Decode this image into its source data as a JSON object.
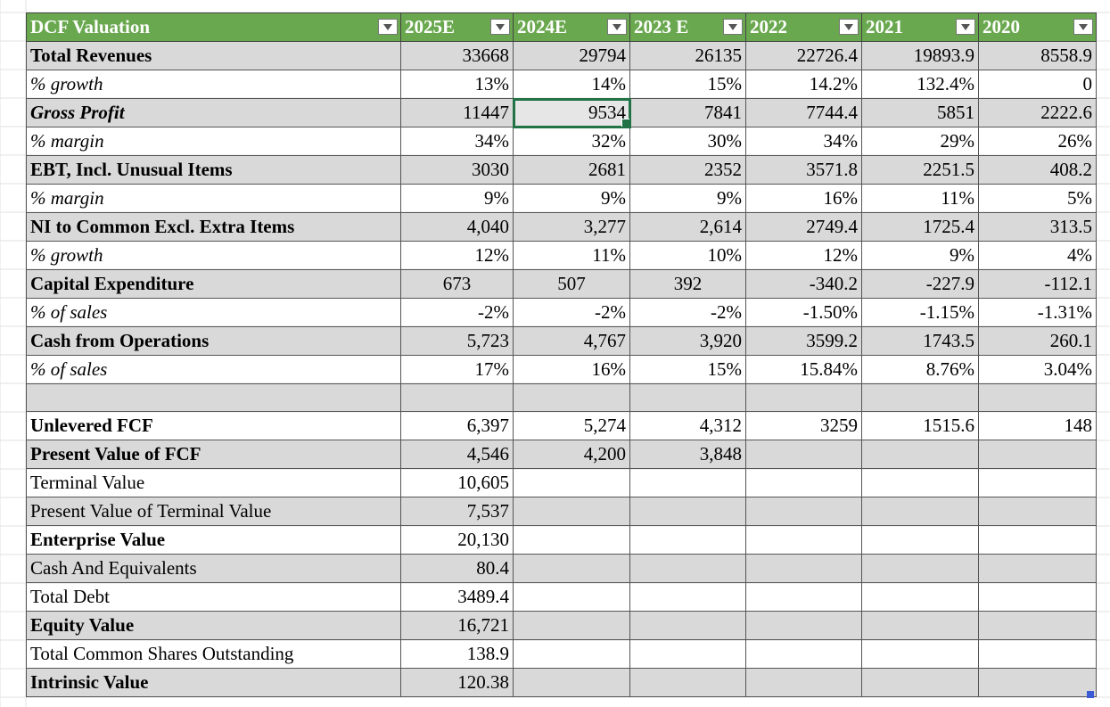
{
  "header": {
    "title": "DCF Valuation",
    "years": [
      "2025E",
      "2024E",
      "2023 E",
      "2022",
      "2021",
      "2020"
    ]
  },
  "rows": [
    {
      "label": "Total Revenues",
      "style": "bold",
      "gray": true,
      "values": [
        "33668",
        "29794",
        "26135",
        "22726.4",
        "19893.9",
        "8558.9"
      ]
    },
    {
      "label": "% growth",
      "style": "ital",
      "gray": false,
      "values": [
        "13%",
        "14%",
        "15%",
        "14.2%",
        "132.4%",
        "0"
      ],
      "red": [
        0,
        1,
        2
      ]
    },
    {
      "label": "Gross Profit",
      "style": "boldital",
      "gray": true,
      "values": [
        "11447",
        "9534",
        "7841",
        "7744.4",
        "5851",
        "2222.6"
      ],
      "selected": 1
    },
    {
      "label": "% margin",
      "style": "ital",
      "gray": false,
      "values": [
        "34%",
        "32%",
        "30%",
        "34%",
        "29%",
        "26%"
      ],
      "red": [
        0,
        1,
        2
      ]
    },
    {
      "label": "EBT, Incl. Unusual Items",
      "style": "bold",
      "gray": true,
      "values": [
        "3030",
        "2681",
        "2352",
        "3571.8",
        "2251.5",
        "408.2"
      ]
    },
    {
      "label": "% margin",
      "style": "ital",
      "gray": false,
      "values": [
        "9%",
        "9%",
        "9%",
        "16%",
        "11%",
        "5%"
      ],
      "red": [
        0,
        1,
        2
      ]
    },
    {
      "label": "NI to Common Excl. Extra Items",
      "style": "bold",
      "gray": true,
      "values": [
        "4,040",
        "3,277",
        "2,614",
        "2749.4",
        "1725.4",
        "313.5"
      ]
    },
    {
      "label": "% growth",
      "style": "ital",
      "gray": false,
      "values": [
        "12%",
        "11%",
        "10%",
        "12%",
        "9%",
        "4%"
      ],
      "red": [
        0,
        1,
        2
      ]
    },
    {
      "label": "Capital Expenditure",
      "style": "bold",
      "gray": true,
      "values": [
        "673",
        "507",
        "392",
        "-340.2",
        "-227.9",
        "-112.1"
      ],
      "center": [
        0,
        1,
        2
      ]
    },
    {
      "label": "% of sales",
      "style": "ital",
      "gray": false,
      "values": [
        "-2%",
        "-2%",
        "-2%",
        "-1.50%",
        "-1.15%",
        "-1.31%"
      ],
      "red": [
        0,
        1,
        2
      ]
    },
    {
      "label": "Cash from Operations",
      "style": "bold",
      "gray": true,
      "values": [
        "5,723",
        "4,767",
        "3,920",
        "3599.2",
        "1743.5",
        "260.1"
      ]
    },
    {
      "label": "% of sales",
      "style": "ital",
      "gray": false,
      "values": [
        "17%",
        "16%",
        "15%",
        "15.84%",
        "8.76%",
        "3.04%"
      ],
      "red": [
        0,
        1,
        2
      ]
    },
    {
      "label": "",
      "style": "",
      "gray": true,
      "values": [
        "",
        "",
        "",
        "",
        "",
        ""
      ]
    },
    {
      "label": "Unlevered FCF",
      "style": "bold",
      "gray": false,
      "values": [
        "6,397",
        "5,274",
        "4,312",
        "3259",
        "1515.6",
        "148"
      ]
    },
    {
      "label": "Present Value of FCF",
      "style": "bold",
      "gray": true,
      "values": [
        "4,546",
        "4,200",
        "3,848",
        "",
        "",
        ""
      ]
    },
    {
      "label": "Terminal Value",
      "style": "",
      "gray": false,
      "values": [
        "10,605",
        "",
        "",
        "",
        "",
        ""
      ]
    },
    {
      "label": "Present Value of Terminal Value",
      "style": "",
      "gray": true,
      "values": [
        "7,537",
        "",
        "",
        "",
        "",
        ""
      ]
    },
    {
      "label": "Enterprise Value",
      "style": "bold",
      "gray": false,
      "values": [
        "20,130",
        "",
        "",
        "",
        "",
        ""
      ]
    },
    {
      "label": "Cash And Equivalents",
      "style": "",
      "gray": true,
      "values": [
        "80.4",
        "",
        "",
        "",
        "",
        ""
      ]
    },
    {
      "label": "Total Debt",
      "style": "",
      "gray": false,
      "values": [
        "3489.4",
        "",
        "",
        "",
        "",
        ""
      ]
    },
    {
      "label": "Equity Value",
      "style": "bold",
      "gray": true,
      "values": [
        "16,721",
        "",
        "",
        "",
        "",
        ""
      ]
    },
    {
      "label": "Total Common Shares Outstanding",
      "style": "",
      "gray": false,
      "values": [
        "138.9",
        "",
        "",
        "",
        "",
        ""
      ]
    },
    {
      "label": "Intrinsic Value",
      "style": "bold",
      "gray": true,
      "values": [
        "120.38",
        "",
        "",
        "",
        "",
        ""
      ]
    }
  ],
  "colors": {
    "header_bg": "#6aa84f",
    "negative_text": "#e00000",
    "gray_row": "#d9d9d9",
    "selection": "#217346"
  }
}
